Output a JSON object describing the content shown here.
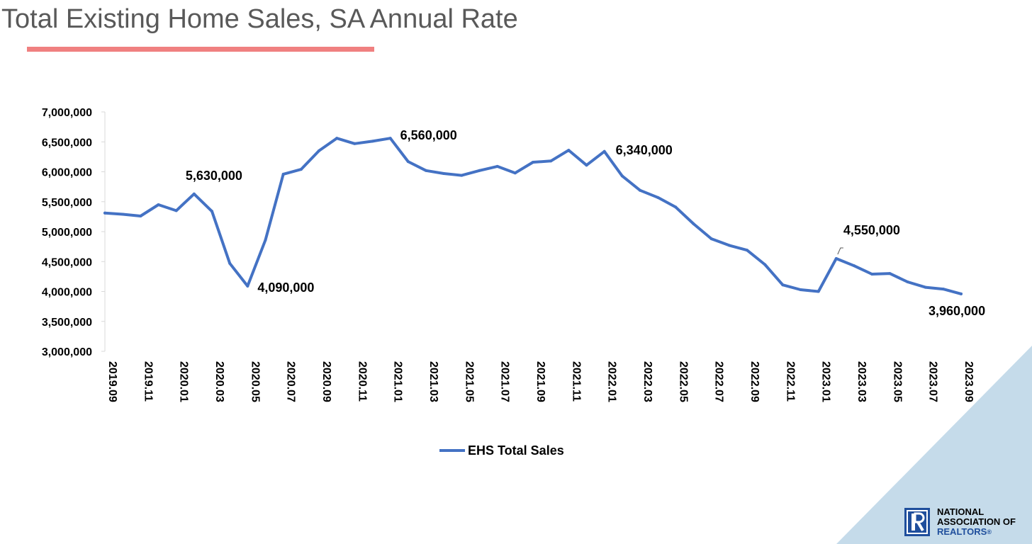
{
  "title": "Total Existing Home Sales, SA Annual Rate",
  "colors": {
    "line": "#4472c4",
    "underline": "#f08080",
    "triangle": "#c5dbea",
    "logo": "#1f4e9c"
  },
  "logo": {
    "line1": "NATIONAL",
    "line2": "ASSOCIATION OF",
    "line3": "REALTORS",
    "reg": "®",
    "icon": "realtor-r-icon"
  },
  "chart_data": {
    "type": "line",
    "title": "",
    "xlabel": "",
    "ylabel": "",
    "ylim": [
      3000000,
      7000000
    ],
    "yticks": [
      3000000,
      3500000,
      4000000,
      4500000,
      5000000,
      5500000,
      6000000,
      6500000,
      7000000
    ],
    "ytick_labels": [
      "3,000,000",
      "3,500,000",
      "4,000,000",
      "4,500,000",
      "5,000,000",
      "5,500,000",
      "6,000,000",
      "6,500,000",
      "7,000,000"
    ],
    "grid": false,
    "legend": "bottom",
    "x": [
      "2019.09",
      "2019.10",
      "2019.11",
      "2019.12",
      "2020.01",
      "2020.02",
      "2020.03",
      "2020.04",
      "2020.05",
      "2020.06",
      "2020.07",
      "2020.08",
      "2020.09",
      "2020.10",
      "2020.11",
      "2020.12",
      "2021.01",
      "2021.02",
      "2021.03",
      "2021.04",
      "2021.05",
      "2021.06",
      "2021.07",
      "2021.08",
      "2021.09",
      "2021.10",
      "2021.11",
      "2021.12",
      "2022.01",
      "2022.02",
      "2022.03",
      "2022.04",
      "2022.05",
      "2022.06",
      "2022.07",
      "2022.08",
      "2022.09",
      "2022.10",
      "2022.11",
      "2022.12",
      "2023.01",
      "2023.02",
      "2023.03",
      "2023.04",
      "2023.05",
      "2023.06",
      "2023.07",
      "2023.08",
      "2023.09"
    ],
    "xtick_labels": [
      "2019.09",
      "2019.11",
      "2020.01",
      "2020.03",
      "2020.05",
      "2020.07",
      "2020.09",
      "2020.11",
      "2021.01",
      "2021.03",
      "2021.05",
      "2021.07",
      "2021.09",
      "2021.11",
      "2022.01",
      "2022.03",
      "2022.05",
      "2022.07",
      "2022.09",
      "2022.11",
      "2023.01",
      "2023.03",
      "2023.05",
      "2023.07",
      "2023.09"
    ],
    "series": [
      {
        "name": "EHS Total Sales",
        "values": [
          5310000,
          5290000,
          5260000,
          5450000,
          5350000,
          5630000,
          5340000,
          4470000,
          4090000,
          4860000,
          5960000,
          6040000,
          6350000,
          6560000,
          6470000,
          6510000,
          6560000,
          6170000,
          6020000,
          5970000,
          5940000,
          6020000,
          6090000,
          5980000,
          6160000,
          6180000,
          6360000,
          6110000,
          6340000,
          5930000,
          5690000,
          5570000,
          5410000,
          5130000,
          4880000,
          4770000,
          4690000,
          4450000,
          4110000,
          4030000,
          4000000,
          4550000,
          4430000,
          4290000,
          4300000,
          4160000,
          4070000,
          4040000,
          3960000
        ]
      }
    ],
    "annotations": [
      {
        "x": "2020.02",
        "label": "5,630,000"
      },
      {
        "x": "2020.05",
        "label": "4,090,000"
      },
      {
        "x": "2021.01",
        "label": "6,560,000"
      },
      {
        "x": "2022.01",
        "label": "6,340,000"
      },
      {
        "x": "2023.02",
        "label": "4,550,000"
      },
      {
        "x": "2023.09",
        "label": "3,960,000"
      }
    ]
  }
}
